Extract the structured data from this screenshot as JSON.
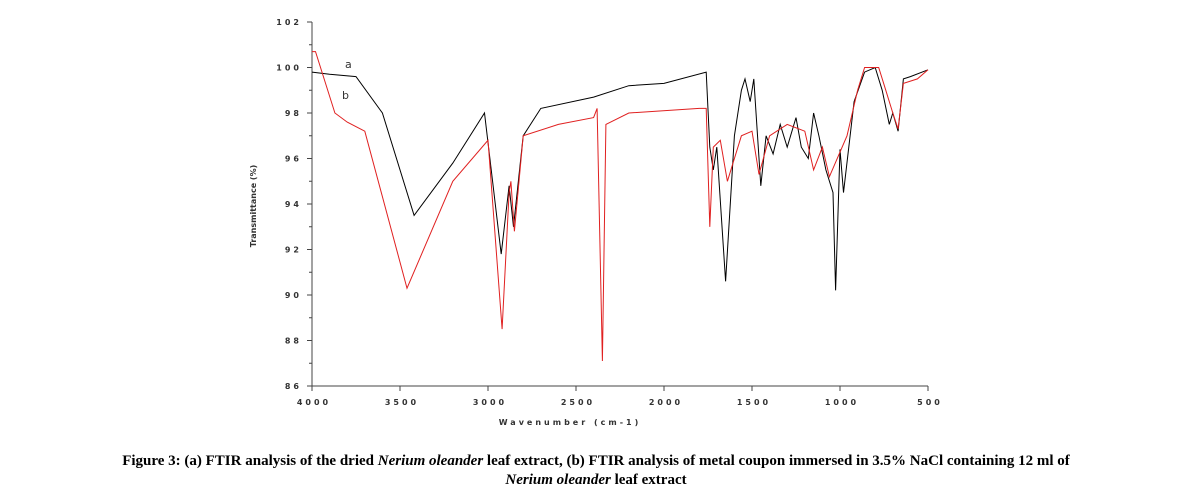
{
  "chart_data": {
    "type": "line",
    "x_label": "Wavenumber (cm-1)",
    "y_label": "Transmittance (%)",
    "xlim": [
      4000,
      500
    ],
    "xticks": [
      4000,
      3500,
      3000,
      2500,
      2000,
      1500,
      1000,
      500
    ],
    "ylim": [
      86,
      102
    ],
    "yticks": [
      86,
      88,
      90,
      92,
      94,
      96,
      98,
      100,
      102
    ],
    "series": [
      {
        "name": "a",
        "color": "#000000",
        "x": [
          4000,
          3900,
          3750,
          3600,
          3420,
          3200,
          3020,
          2925,
          2880,
          2855,
          2800,
          2700,
          2400,
          2200,
          2000,
          1760,
          1740,
          1720,
          1700,
          1650,
          1600,
          1560,
          1540,
          1510,
          1490,
          1450,
          1420,
          1380,
          1340,
          1300,
          1250,
          1220,
          1180,
          1150,
          1120,
          1080,
          1040,
          1025,
          1000,
          980,
          920,
          860,
          800,
          760,
          720,
          700,
          670,
          640,
          600,
          500
        ],
        "values": [
          99.8,
          99.7,
          99.6,
          98.0,
          93.5,
          95.8,
          98.0,
          91.8,
          94.8,
          93.0,
          97.0,
          98.2,
          98.7,
          99.2,
          99.3,
          99.8,
          96.5,
          95.5,
          96.5,
          90.6,
          97.0,
          99.0,
          99.5,
          98.5,
          99.5,
          94.8,
          97.0,
          96.2,
          97.5,
          96.5,
          97.8,
          96.5,
          96.0,
          98.0,
          97.0,
          95.5,
          94.5,
          90.2,
          96.4,
          94.5,
          98.5,
          99.8,
          100.0,
          99.0,
          97.5,
          98.0,
          97.2,
          99.5,
          99.6,
          99.9
        ]
      },
      {
        "name": "b",
        "color": "#e02020",
        "x": [
          4000,
          3980,
          3870,
          3800,
          3700,
          3460,
          3200,
          3000,
          2920,
          2880,
          2870,
          2850,
          2800,
          2600,
          2400,
          2380,
          2350,
          2330,
          2200,
          1800,
          1760,
          1740,
          1720,
          1680,
          1640,
          1600,
          1560,
          1500,
          1460,
          1400,
          1300,
          1200,
          1150,
          1100,
          1060,
          960,
          900,
          860,
          780,
          740,
          700,
          670,
          640,
          560,
          500
        ],
        "values": [
          100.7,
          100.7,
          98.0,
          97.6,
          97.2,
          90.3,
          95.0,
          96.8,
          88.5,
          94.5,
          95.0,
          92.8,
          97.0,
          97.5,
          97.8,
          98.2,
          87.1,
          97.5,
          98.0,
          98.2,
          98.2,
          93.0,
          96.5,
          96.8,
          95.0,
          96.0,
          97.0,
          97.2,
          95.3,
          97.0,
          97.5,
          97.2,
          95.5,
          96.5,
          95.2,
          97.0,
          99.0,
          100.0,
          100.0,
          99.0,
          98.0,
          97.3,
          99.3,
          99.5,
          99.9
        ]
      }
    ],
    "caption": [
      [
        {
          "text": "Figure 3: (a) FTIR analysis of the dried ",
          "italic": false
        },
        {
          "text": "Nerium oleander",
          "italic": true
        },
        {
          "text": " leaf extract, (b) FTIR analysis of metal coupon immersed in 3.5% NaCl containing 12 ml of",
          "italic": false
        }
      ],
      [
        {
          "text": "Nerium oleander",
          "italic": true
        },
        {
          "text": " leaf extract",
          "italic": false
        }
      ]
    ]
  }
}
